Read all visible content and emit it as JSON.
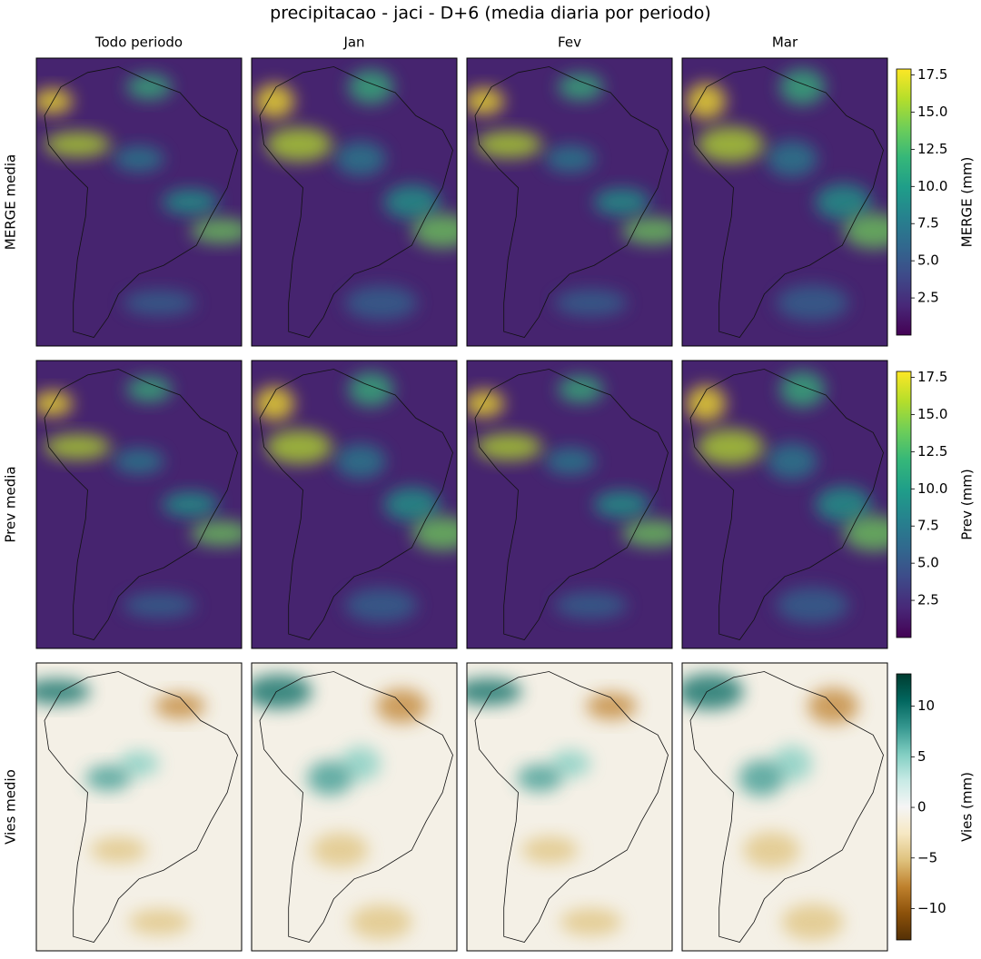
{
  "title": "precipitacao - jaci - D+6 (media diaria por periodo)",
  "columns": [
    "Todo periodo",
    "Jan",
    "Fev",
    "Mar"
  ],
  "rows": [
    {
      "label": "MERGE media",
      "colorbar": {
        "label": "MERGE (mm)",
        "cmap": "viridis",
        "lim": [
          0,
          17.9
        ],
        "ticks": [
          {
            "value": 2.5,
            "label": "2.5"
          },
          {
            "value": 5,
            "label": "5.0"
          },
          {
            "value": 7.5,
            "label": "7.5"
          },
          {
            "value": 10,
            "label": "10.0"
          },
          {
            "value": 12.5,
            "label": "12.5"
          },
          {
            "value": 15,
            "label": "15.0"
          },
          {
            "value": 17.5,
            "label": "17.5"
          }
        ]
      }
    },
    {
      "label": "Prev media",
      "colorbar": {
        "label": "Prev (mm)",
        "cmap": "viridis",
        "lim": [
          0,
          17.9
        ],
        "ticks": [
          {
            "value": 2.5,
            "label": "2.5"
          },
          {
            "value": 5,
            "label": "5.0"
          },
          {
            "value": 7.5,
            "label": "7.5"
          },
          {
            "value": 10,
            "label": "10.0"
          },
          {
            "value": 12.5,
            "label": "12.5"
          },
          {
            "value": 15,
            "label": "15.0"
          },
          {
            "value": 17.5,
            "label": "17.5"
          }
        ]
      }
    },
    {
      "label": "Vies medio",
      "colorbar": {
        "label": "Vies (mm)",
        "cmap": "BrBG",
        "lim": [
          -13.1,
          13.2
        ],
        "ticks": [
          {
            "value": -10,
            "label": "−10"
          },
          {
            "value": -5,
            "label": "−5"
          },
          0,
          5,
          10
        ]
      }
    }
  ]
}
